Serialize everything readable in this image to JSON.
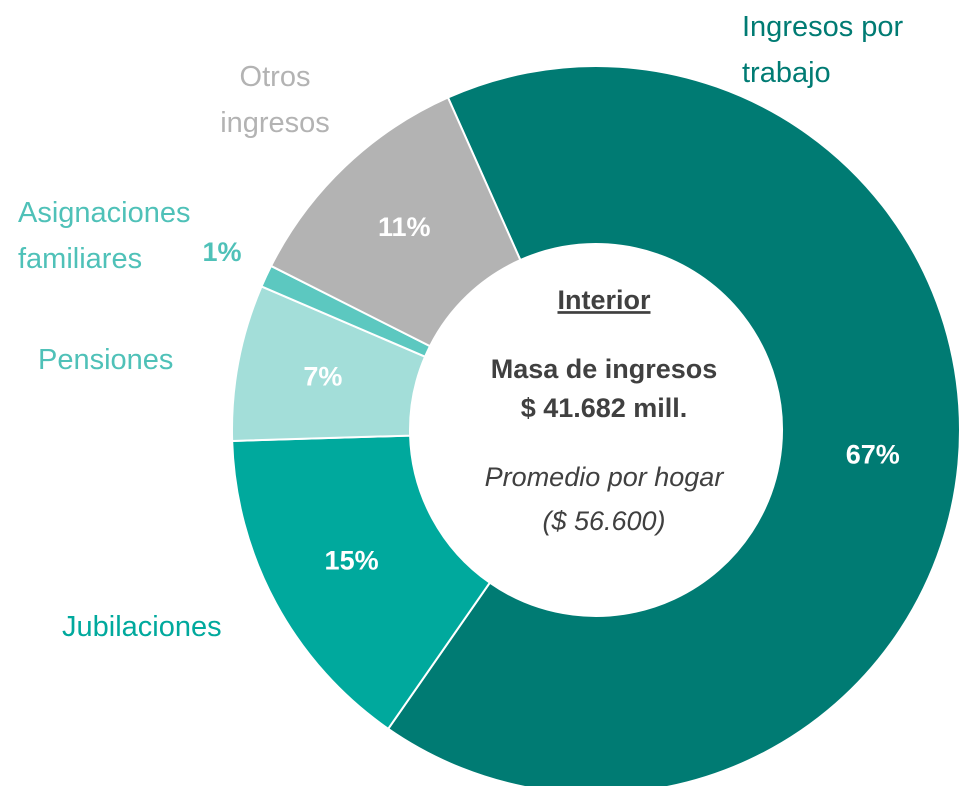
{
  "chart_data": {
    "type": "donut",
    "categories": [
      "Ingresos por trabajo",
      "Jubilaciones",
      "Pensiones",
      "Asignaciones familiares",
      "Otros ingresos"
    ],
    "values": [
      67,
      15,
      7,
      1,
      11
    ],
    "value_labels": [
      "67%",
      "15%",
      "7%",
      "1%",
      "11%"
    ],
    "colors": [
      "#007b73",
      "#00a99d",
      "#a3ded9",
      "#5cc8c0",
      "#b3b3b3"
    ],
    "label_colors": [
      "#007b73",
      "#00a99d",
      "#4fc1b8",
      "#4fc1b8",
      "#b3b3b3"
    ],
    "center": {
      "title": "Interior",
      "line1": "Masa de ingresos",
      "line2": "$ 41.682 mill.",
      "line3": "Promedio por hogar",
      "line4": "($ 56.600)"
    }
  }
}
